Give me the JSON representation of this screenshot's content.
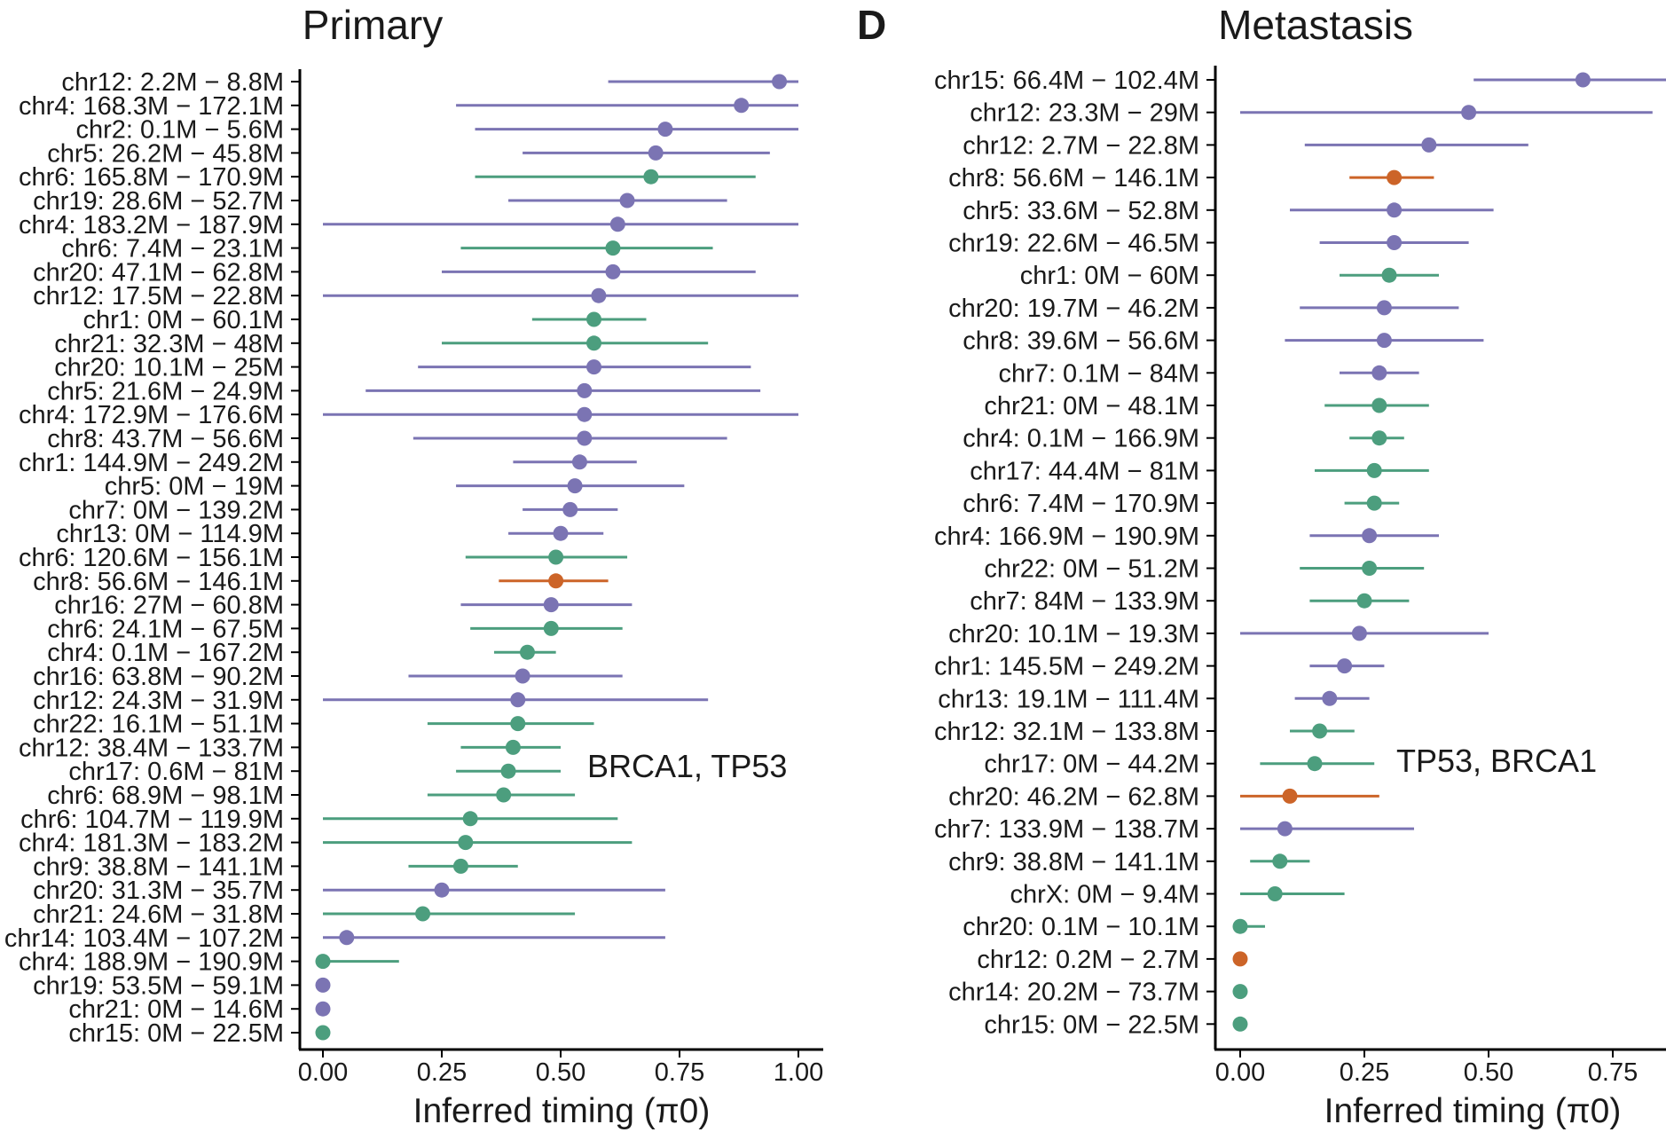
{
  "colors": {
    "purple": "#7b74b3",
    "green": "#4c9e7e",
    "orange": "#cc6428"
  },
  "chart_data": [
    {
      "type": "scatter",
      "title": "Primary",
      "panel_letter": "",
      "xlabel": "Inferred timing (π0)",
      "ylabel": "",
      "xlim": [
        -0.05,
        1.05
      ],
      "xticks": [
        0.0,
        0.25,
        0.5,
        0.75,
        1.0
      ],
      "xtick_labels": [
        "0.00",
        "0.25",
        "0.50",
        "0.75",
        "1.00"
      ],
      "annotation": "BRCA1, TP53",
      "points": [
        {
          "label": "chr12: 2.2M − 8.8M",
          "value": 0.96,
          "low": 0.6,
          "high": 1.0,
          "color": "purple"
        },
        {
          "label": "chr4: 168.3M − 172.1M",
          "value": 0.88,
          "low": 0.28,
          "high": 1.0,
          "color": "purple"
        },
        {
          "label": "chr2: 0.1M − 5.6M",
          "value": 0.72,
          "low": 0.32,
          "high": 1.0,
          "color": "purple"
        },
        {
          "label": "chr5: 26.2M − 45.8M",
          "value": 0.7,
          "low": 0.42,
          "high": 0.94,
          "color": "purple"
        },
        {
          "label": "chr6: 165.8M − 170.9M",
          "value": 0.69,
          "low": 0.32,
          "high": 0.91,
          "color": "green"
        },
        {
          "label": "chr19: 28.6M − 52.7M",
          "value": 0.64,
          "low": 0.39,
          "high": 0.85,
          "color": "purple"
        },
        {
          "label": "chr4: 183.2M − 187.9M",
          "value": 0.62,
          "low": 0.0,
          "high": 1.0,
          "color": "purple"
        },
        {
          "label": "chr6: 7.4M − 23.1M",
          "value": 0.61,
          "low": 0.29,
          "high": 0.82,
          "color": "green"
        },
        {
          "label": "chr20: 47.1M − 62.8M",
          "value": 0.61,
          "low": 0.25,
          "high": 0.91,
          "color": "purple"
        },
        {
          "label": "chr12: 17.5M − 22.8M",
          "value": 0.58,
          "low": 0.0,
          "high": 1.0,
          "color": "purple"
        },
        {
          "label": "chr1: 0M − 60.1M",
          "value": 0.57,
          "low": 0.44,
          "high": 0.68,
          "color": "green"
        },
        {
          "label": "chr21: 32.3M − 48M",
          "value": 0.57,
          "low": 0.25,
          "high": 0.81,
          "color": "green"
        },
        {
          "label": "chr20: 10.1M − 25M",
          "value": 0.57,
          "low": 0.2,
          "high": 0.9,
          "color": "purple"
        },
        {
          "label": "chr5: 21.6M − 24.9M",
          "value": 0.55,
          "low": 0.09,
          "high": 0.92,
          "color": "purple"
        },
        {
          "label": "chr4: 172.9M − 176.6M",
          "value": 0.55,
          "low": 0.0,
          "high": 1.0,
          "color": "purple"
        },
        {
          "label": "chr8: 43.7M − 56.6M",
          "value": 0.55,
          "low": 0.19,
          "high": 0.85,
          "color": "purple"
        },
        {
          "label": "chr1: 144.9M − 249.2M",
          "value": 0.54,
          "low": 0.4,
          "high": 0.66,
          "color": "purple"
        },
        {
          "label": "chr5: 0M − 19M",
          "value": 0.53,
          "low": 0.28,
          "high": 0.76,
          "color": "purple"
        },
        {
          "label": "chr7: 0M − 139.2M",
          "value": 0.52,
          "low": 0.42,
          "high": 0.62,
          "color": "purple"
        },
        {
          "label": "chr13: 0M − 114.9M",
          "value": 0.5,
          "low": 0.39,
          "high": 0.59,
          "color": "purple"
        },
        {
          "label": "chr6: 120.6M − 156.1M",
          "value": 0.49,
          "low": 0.3,
          "high": 0.64,
          "color": "green"
        },
        {
          "label": "chr8: 56.6M − 146.1M",
          "value": 0.49,
          "low": 0.37,
          "high": 0.6,
          "color": "orange"
        },
        {
          "label": "chr16: 27M − 60.8M",
          "value": 0.48,
          "low": 0.29,
          "high": 0.65,
          "color": "purple"
        },
        {
          "label": "chr6: 24.1M − 67.5M",
          "value": 0.48,
          "low": 0.31,
          "high": 0.63,
          "color": "green"
        },
        {
          "label": "chr4: 0.1M − 167.2M",
          "value": 0.43,
          "low": 0.36,
          "high": 0.49,
          "color": "green"
        },
        {
          "label": "chr16: 63.8M − 90.2M",
          "value": 0.42,
          "low": 0.18,
          "high": 0.63,
          "color": "purple"
        },
        {
          "label": "chr12: 24.3M − 31.9M",
          "value": 0.41,
          "low": 0.0,
          "high": 0.81,
          "color": "purple"
        },
        {
          "label": "chr22: 16.1M − 51.1M",
          "value": 0.41,
          "low": 0.22,
          "high": 0.57,
          "color": "green"
        },
        {
          "label": "chr12: 38.4M − 133.7M",
          "value": 0.4,
          "low": 0.29,
          "high": 0.5,
          "color": "green"
        },
        {
          "label": "chr17: 0.6M − 81M",
          "value": 0.39,
          "low": 0.28,
          "high": 0.5,
          "color": "green"
        },
        {
          "label": "chr6: 68.9M − 98.1M",
          "value": 0.38,
          "low": 0.22,
          "high": 0.53,
          "color": "green"
        },
        {
          "label": "chr6: 104.7M − 119.9M",
          "value": 0.31,
          "low": 0.0,
          "high": 0.62,
          "color": "green"
        },
        {
          "label": "chr4: 181.3M − 183.2M",
          "value": 0.3,
          "low": 0.0,
          "high": 0.65,
          "color": "green"
        },
        {
          "label": "chr9: 38.8M − 141.1M",
          "value": 0.29,
          "low": 0.18,
          "high": 0.41,
          "color": "green"
        },
        {
          "label": "chr20: 31.3M − 35.7M",
          "value": 0.25,
          "low": 0.0,
          "high": 0.72,
          "color": "purple"
        },
        {
          "label": "chr21: 24.6M − 31.8M",
          "value": 0.21,
          "low": 0.0,
          "high": 0.53,
          "color": "green"
        },
        {
          "label": "chr14: 103.4M − 107.2M",
          "value": 0.05,
          "low": 0.0,
          "high": 0.72,
          "color": "purple"
        },
        {
          "label": "chr4: 188.9M − 190.9M",
          "value": 0.0,
          "low": 0.0,
          "high": 0.16,
          "color": "green"
        },
        {
          "label": "chr19: 53.5M − 59.1M",
          "value": 0.0,
          "low": 0.0,
          "high": 0.0,
          "color": "purple"
        },
        {
          "label": "chr21: 0M − 14.6M",
          "value": 0.0,
          "low": 0.0,
          "high": 0.0,
          "color": "purple"
        },
        {
          "label": "chr15: 0M − 22.5M",
          "value": 0.0,
          "low": 0.0,
          "high": 0.0,
          "color": "green"
        }
      ]
    },
    {
      "type": "scatter",
      "title": "Metastasis",
      "panel_letter": "D",
      "xlabel": "Inferred timing (π0)",
      "ylabel": "",
      "xlim": [
        -0.05,
        0.86
      ],
      "xticks": [
        0.0,
        0.25,
        0.5,
        0.75
      ],
      "xtick_labels": [
        "0.00",
        "0.25",
        "0.50",
        "0.75"
      ],
      "annotation": "TP53, BRCA1",
      "points": [
        {
          "label": "chr15: 66.4M − 102.4M",
          "value": 0.69,
          "low": 0.47,
          "high": 0.86,
          "color": "purple"
        },
        {
          "label": "chr12: 23.3M − 29M",
          "value": 0.46,
          "low": 0.0,
          "high": 0.83,
          "color": "purple"
        },
        {
          "label": "chr12: 2.7M − 22.8M",
          "value": 0.38,
          "low": 0.13,
          "high": 0.58,
          "color": "purple"
        },
        {
          "label": "chr8: 56.6M − 146.1M",
          "value": 0.31,
          "low": 0.22,
          "high": 0.39,
          "color": "orange"
        },
        {
          "label": "chr5: 33.6M − 52.8M",
          "value": 0.31,
          "low": 0.1,
          "high": 0.51,
          "color": "purple"
        },
        {
          "label": "chr19: 22.6M − 46.5M",
          "value": 0.31,
          "low": 0.16,
          "high": 0.46,
          "color": "purple"
        },
        {
          "label": "chr1: 0M − 60M",
          "value": 0.3,
          "low": 0.2,
          "high": 0.4,
          "color": "green"
        },
        {
          "label": "chr20: 19.7M − 46.2M",
          "value": 0.29,
          "low": 0.12,
          "high": 0.44,
          "color": "purple"
        },
        {
          "label": "chr8: 39.6M − 56.6M",
          "value": 0.29,
          "low": 0.09,
          "high": 0.49,
          "color": "purple"
        },
        {
          "label": "chr7: 0.1M − 84M",
          "value": 0.28,
          "low": 0.2,
          "high": 0.36,
          "color": "purple"
        },
        {
          "label": "chr21: 0M − 48.1M",
          "value": 0.28,
          "low": 0.17,
          "high": 0.38,
          "color": "green"
        },
        {
          "label": "chr4: 0.1M − 166.9M",
          "value": 0.28,
          "low": 0.22,
          "high": 0.33,
          "color": "green"
        },
        {
          "label": "chr17: 44.4M − 81M",
          "value": 0.27,
          "low": 0.15,
          "high": 0.38,
          "color": "green"
        },
        {
          "label": "chr6: 7.4M − 170.9M",
          "value": 0.27,
          "low": 0.21,
          "high": 0.32,
          "color": "green"
        },
        {
          "label": "chr4: 166.9M − 190.9M",
          "value": 0.26,
          "low": 0.14,
          "high": 0.4,
          "color": "purple"
        },
        {
          "label": "chr22: 0M − 51.2M",
          "value": 0.26,
          "low": 0.12,
          "high": 0.37,
          "color": "green"
        },
        {
          "label": "chr7: 84M − 133.9M",
          "value": 0.25,
          "low": 0.14,
          "high": 0.34,
          "color": "green"
        },
        {
          "label": "chr20: 10.1M − 19.3M",
          "value": 0.24,
          "low": 0.0,
          "high": 0.5,
          "color": "purple"
        },
        {
          "label": "chr1: 145.5M − 249.2M",
          "value": 0.21,
          "low": 0.14,
          "high": 0.29,
          "color": "purple"
        },
        {
          "label": "chr13: 19.1M − 111.4M",
          "value": 0.18,
          "low": 0.11,
          "high": 0.26,
          "color": "purple"
        },
        {
          "label": "chr12: 32.1M − 133.8M",
          "value": 0.16,
          "low": 0.1,
          "high": 0.23,
          "color": "green"
        },
        {
          "label": "chr17: 0M − 44.2M",
          "value": 0.15,
          "low": 0.04,
          "high": 0.27,
          "color": "green"
        },
        {
          "label": "chr20: 46.2M − 62.8M",
          "value": 0.1,
          "low": 0.0,
          "high": 0.28,
          "color": "orange"
        },
        {
          "label": "chr7: 133.9M − 138.7M",
          "value": 0.09,
          "low": 0.0,
          "high": 0.35,
          "color": "purple"
        },
        {
          "label": "chr9: 38.8M − 141.1M",
          "value": 0.08,
          "low": 0.02,
          "high": 0.14,
          "color": "green"
        },
        {
          "label": "chrX: 0M − 9.4M",
          "value": 0.07,
          "low": 0.0,
          "high": 0.21,
          "color": "green"
        },
        {
          "label": "chr20: 0.1M − 10.1M",
          "value": 0.0,
          "low": 0.0,
          "high": 0.05,
          "color": "green"
        },
        {
          "label": "chr12: 0.2M − 2.7M",
          "value": 0.0,
          "low": 0.0,
          "high": 0.0,
          "color": "orange"
        },
        {
          "label": "chr14: 20.2M − 73.7M",
          "value": 0.0,
          "low": 0.0,
          "high": 0.0,
          "color": "green"
        },
        {
          "label": "chr15: 0M − 22.5M",
          "value": 0.0,
          "low": 0.0,
          "high": 0.0,
          "color": "green"
        }
      ]
    }
  ]
}
